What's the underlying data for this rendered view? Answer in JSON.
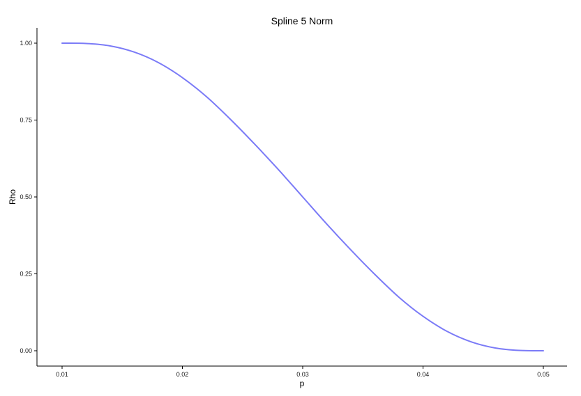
{
  "chart_data": {
    "type": "line",
    "title": "Spline 5 Norm",
    "xlabel": "p",
    "ylabel": "Rho",
    "xlim": [
      0.01,
      0.05
    ],
    "ylim": [
      0.0,
      1.0
    ],
    "x_ticks": [
      0.01,
      0.02,
      0.03,
      0.04,
      0.05
    ],
    "x_tick_labels": [
      "0.01",
      "0.02",
      "0.03",
      "0.04",
      "0.05"
    ],
    "y_ticks": [
      0.0,
      0.25,
      0.5,
      0.75,
      1.0
    ],
    "y_tick_labels": [
      "0.00",
      "0.25",
      "0.50",
      "0.75",
      "1.00"
    ],
    "grid": false,
    "series": [
      {
        "color": "#7b7bf7",
        "x": [
          0.01,
          0.012,
          0.014,
          0.016,
          0.018,
          0.02,
          0.022,
          0.024,
          0.026,
          0.028,
          0.03,
          0.032,
          0.034,
          0.036,
          0.038,
          0.04,
          0.042,
          0.044,
          0.046,
          0.048,
          0.05
        ],
        "y": [
          1.0,
          0.999,
          0.991,
          0.971,
          0.937,
          0.888,
          0.826,
          0.752,
          0.672,
          0.588,
          0.5,
          0.412,
          0.328,
          0.248,
          0.174,
          0.112,
          0.063,
          0.029,
          0.009,
          0.001,
          0.0
        ]
      }
    ]
  }
}
